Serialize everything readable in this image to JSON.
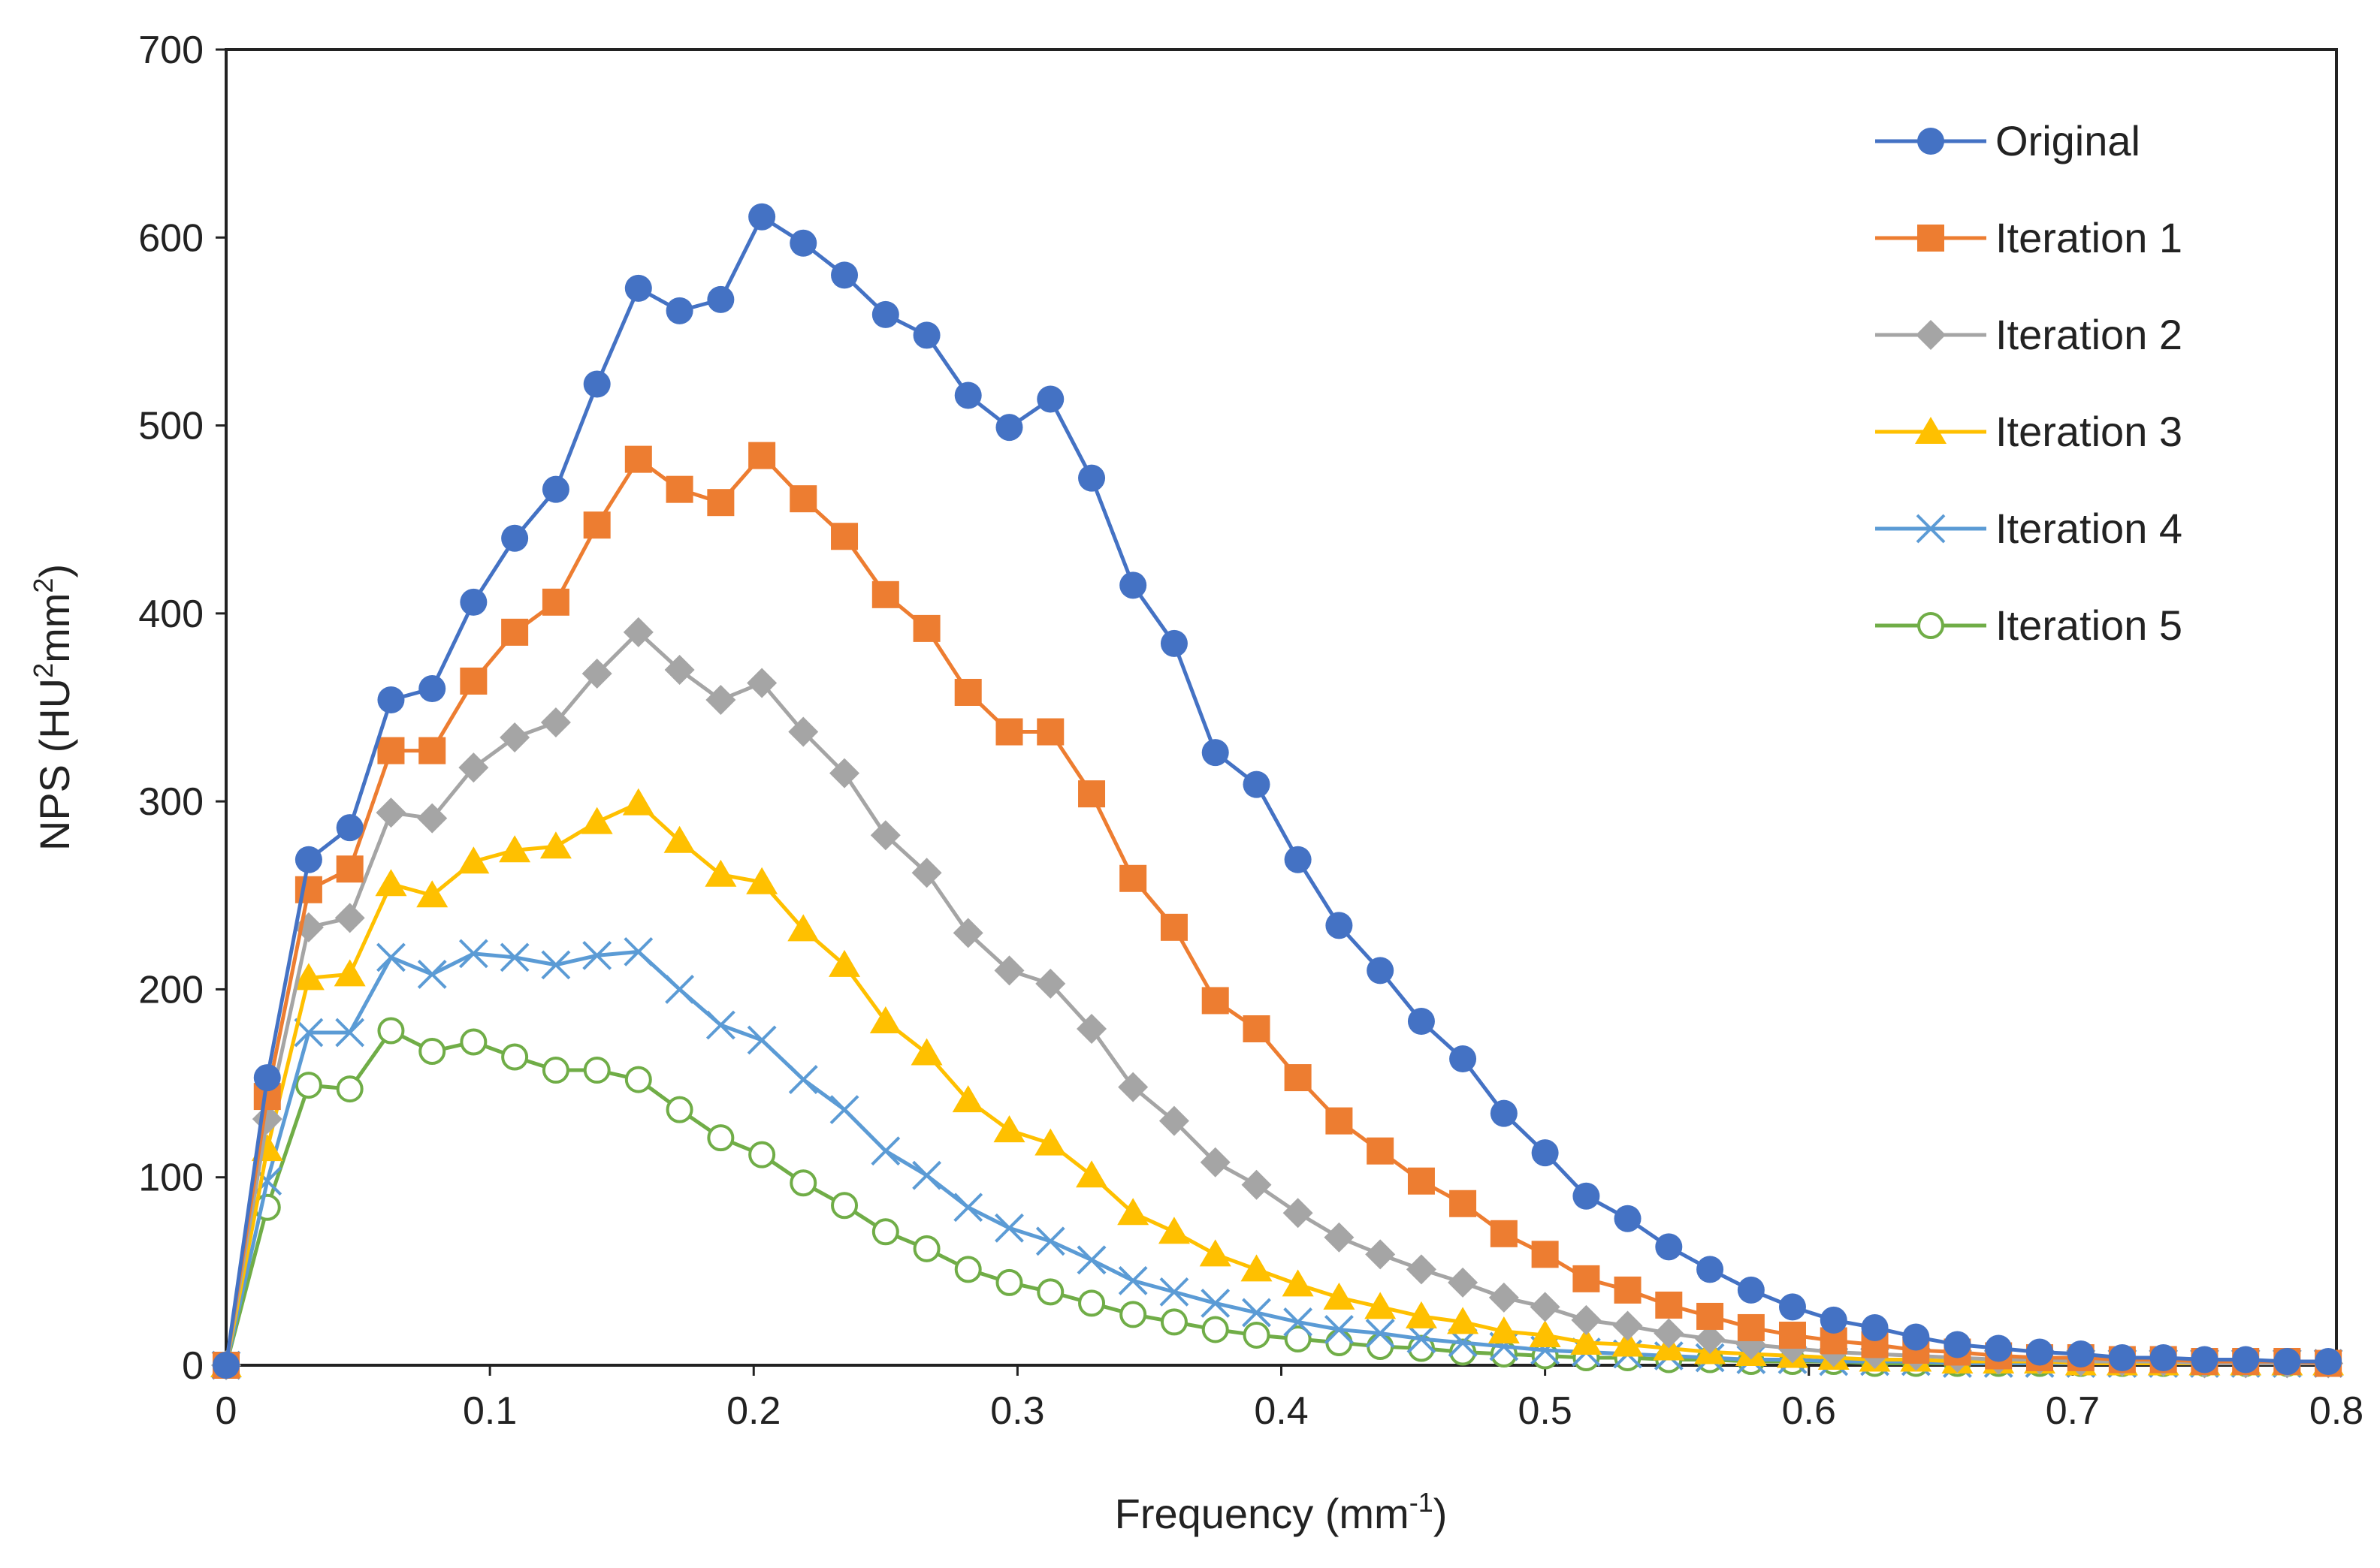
{
  "chart_data": {
    "type": "line",
    "title": "",
    "xlabel": "Frequency (mm",
    "xlabel_sup": "-1",
    "xlabel_close": ")",
    "ylabel": "NPS (HU",
    "ylabel_sup1": "2",
    "ylabel_mid": "mm",
    "ylabel_sup2": "2",
    "ylabel_close": ")",
    "xlim": [
      0,
      0.8
    ],
    "ylim": [
      0,
      700
    ],
    "xticks": [
      0,
      0.1,
      0.2,
      0.3,
      0.4,
      0.5,
      0.6,
      0.7,
      0.8
    ],
    "xtick_labels": [
      "0",
      "0.1",
      "0.2",
      "0.3",
      "0.4",
      "0.5",
      "0.6",
      "0.7",
      "0.8"
    ],
    "yticks": [
      0,
      100,
      200,
      300,
      400,
      500,
      600,
      700
    ],
    "ytick_labels": [
      "0",
      "100",
      "200",
      "300",
      "400",
      "500",
      "600",
      "700"
    ],
    "grid": false,
    "legend_position": "top-right",
    "x": [
      0,
      0.0156,
      0.0313,
      0.0469,
      0.0625,
      0.0781,
      0.0938,
      0.1094,
      0.125,
      0.1406,
      0.1563,
      0.1719,
      0.1875,
      0.2031,
      0.2188,
      0.2344,
      0.25,
      0.2656,
      0.2813,
      0.2969,
      0.3125,
      0.3281,
      0.3438,
      0.3594,
      0.375,
      0.3906,
      0.4063,
      0.4219,
      0.4375,
      0.4531,
      0.4688,
      0.4844,
      0.5,
      0.5156,
      0.5313,
      0.5469,
      0.5625,
      0.5781,
      0.5938,
      0.6094,
      0.625,
      0.6406,
      0.6563,
      0.6719,
      0.6875,
      0.7031,
      0.7188,
      0.7344,
      0.75,
      0.7656,
      0.7813,
      0.7969
    ],
    "series": [
      {
        "name": "Original",
        "color": "#4472C4",
        "marker": "circle",
        "values": [
          0,
          153,
          269,
          286,
          354,
          360,
          406,
          440,
          466,
          522,
          573,
          561,
          567,
          611,
          597,
          580,
          559,
          548,
          516,
          499,
          514,
          472,
          415,
          384,
          326,
          309,
          269,
          234,
          210,
          183,
          163,
          134,
          113,
          90,
          78,
          63,
          51,
          40,
          31,
          24,
          20,
          15,
          11,
          9,
          7,
          6,
          4,
          4,
          3,
          3,
          2,
          2
        ]
      },
      {
        "name": "Iteration 1",
        "color": "#ED7D31",
        "marker": "square",
        "values": [
          0,
          143,
          253,
          264,
          327,
          327,
          364,
          390,
          406,
          447,
          482,
          466,
          459,
          484,
          461,
          441,
          410,
          392,
          358,
          337,
          337,
          304,
          259,
          233,
          194,
          179,
          153,
          130,
          114,
          98,
          86,
          70,
          59,
          46,
          40,
          32,
          26,
          20,
          16,
          13,
          11,
          8,
          7,
          5,
          4,
          4,
          3,
          3,
          2,
          2,
          2,
          1
        ]
      },
      {
        "name": "Iteration 2",
        "color": "#A5A5A5",
        "marker": "diamond",
        "values": [
          0,
          131,
          233,
          238,
          294,
          291,
          318,
          334,
          342,
          368,
          390,
          370,
          354,
          363,
          337,
          315,
          282,
          262,
          230,
          210,
          203,
          179,
          148,
          130,
          108,
          96,
          81,
          68,
          59,
          51,
          44,
          36,
          31,
          24,
          21,
          17,
          14,
          11,
          9,
          7,
          6,
          5,
          4,
          3,
          3,
          2,
          2,
          2,
          1,
          1,
          1,
          1
        ]
      },
      {
        "name": "Iteration 3",
        "color": "#FFC000",
        "marker": "triangle",
        "values": [
          0,
          115,
          206,
          208,
          256,
          250,
          268,
          274,
          276,
          289,
          299,
          279,
          261,
          257,
          232,
          213,
          183,
          166,
          141,
          125,
          118,
          101,
          81,
          71,
          59,
          51,
          43,
          36,
          31,
          26,
          23,
          18,
          16,
          12,
          11,
          9,
          7,
          6,
          5,
          4,
          3,
          3,
          2,
          2,
          2,
          1,
          1,
          1,
          1,
          1,
          1,
          1
        ]
      },
      {
        "name": "Iteration 4",
        "color": "#5B9BD5",
        "marker": "x",
        "values": [
          0,
          98,
          177,
          177,
          217,
          208,
          219,
          217,
          213,
          218,
          220,
          200,
          181,
          173,
          152,
          136,
          114,
          101,
          84,
          73,
          66,
          56,
          45,
          39,
          33,
          28,
          23,
          19,
          17,
          14,
          12,
          10,
          8,
          7,
          6,
          5,
          4,
          3,
          3,
          2,
          2,
          2,
          1,
          1,
          1,
          1,
          1,
          1,
          1,
          1,
          1,
          1
        ]
      },
      {
        "name": "Iteration 5",
        "color": "#70AD47",
        "marker": "open-circle",
        "values": [
          0,
          84,
          149,
          147,
          178,
          167,
          172,
          164,
          157,
          157,
          152,
          136,
          121,
          112,
          97,
          85,
          71,
          62,
          51,
          44,
          39,
          33,
          27,
          23,
          19,
          16,
          14,
          12,
          10,
          9,
          7,
          6,
          5,
          4,
          4,
          3,
          3,
          2,
          2,
          2,
          1,
          1,
          1,
          1,
          1,
          1,
          1,
          1,
          1,
          1,
          1,
          1
        ]
      }
    ]
  }
}
